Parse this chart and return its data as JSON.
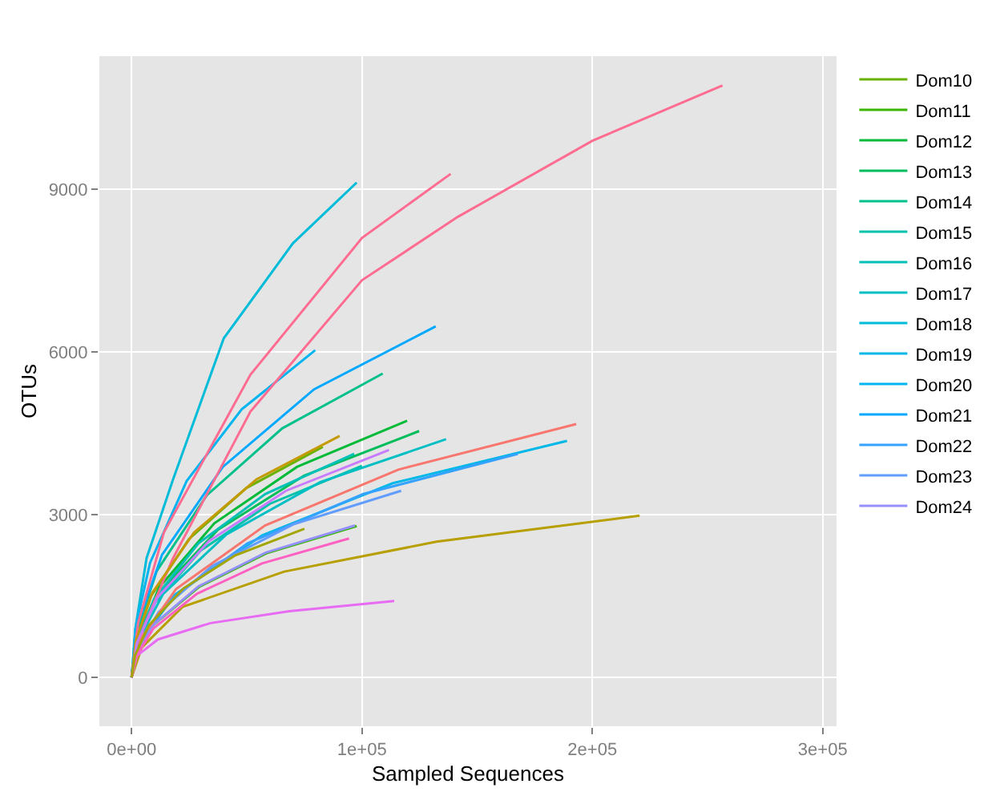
{
  "chart_data": {
    "type": "line",
    "xlabel": "Sampled Sequences",
    "ylabel": "OTUs",
    "xlim": [
      -14000,
      306000
    ],
    "ylim": [
      -900,
      11450
    ],
    "xticks": [
      {
        "value": 0,
        "label": "0e+00"
      },
      {
        "value": 100000,
        "label": "1e+05"
      },
      {
        "value": 200000,
        "label": "2e+05"
      },
      {
        "value": 300000,
        "label": "3e+05"
      }
    ],
    "yticks": [
      0,
      3000,
      6000,
      9000
    ],
    "grid": true,
    "legend": "right",
    "marker": "none",
    "line_style": "solid",
    "series": [
      {
        "name": "Dom10",
        "color": "#6bb100",
        "x": [
          0,
          1700,
          8300,
          24900,
          49800,
          83000
        ],
        "values": [
          0,
          640,
          1490,
          2550,
          3490,
          4250
        ]
      },
      {
        "name": "Dom11",
        "color": "#39b600",
        "x": [
          0,
          2000,
          9800,
          29300,
          58600,
          97700
        ],
        "values": [
          0,
          420,
          980,
          1670,
          2290,
          2790
        ]
      },
      {
        "name": "Dom12",
        "color": "#00ba38",
        "x": [
          0,
          2400,
          12000,
          35900,
          71800,
          119600
        ],
        "values": [
          0,
          710,
          1660,
          2840,
          3880,
          4730
        ]
      },
      {
        "name": "Dom13",
        "color": "#00bd5c",
        "x": [
          0,
          2500,
          12500,
          37400,
          74900,
          124800
        ],
        "values": [
          0,
          680,
          1590,
          2720,
          3720,
          4540
        ]
      },
      {
        "name": "Dom14",
        "color": "#00c08b",
        "x": [
          0,
          2200,
          10900,
          32700,
          65400,
          109000
        ],
        "values": [
          0,
          840,
          1960,
          3360,
          4590,
          5600
        ]
      },
      {
        "name": "Dom15",
        "color": "#00c1a9",
        "x": [
          0,
          2000,
          10000,
          30000,
          60000,
          100000
        ],
        "values": [
          0,
          590,
          1370,
          2340,
          3200,
          3900
        ]
      },
      {
        "name": "Dom16",
        "color": "#00c0b8",
        "x": [
          0,
          1900,
          9700,
          29000,
          58000,
          96600
        ],
        "values": [
          0,
          620,
          1440,
          2470,
          3380,
          4120
        ]
      },
      {
        "name": "Dom17",
        "color": "#00bfc4",
        "x": [
          0,
          2700,
          13700,
          41000,
          81900,
          136500
        ],
        "values": [
          0,
          660,
          1540,
          2630,
          3600,
          4390
        ]
      },
      {
        "name": "Dom18",
        "color": "#00bcd8",
        "x": [
          0,
          2000,
          6500,
          18000,
          40000,
          70000,
          97700
        ],
        "values": [
          0,
          1000,
          2200,
          3650,
          6250,
          8000,
          9120
        ]
      },
      {
        "name": "Dom19",
        "color": "#00b8e7",
        "x": [
          0,
          3800,
          18900,
          56700,
          113400,
          189000
        ],
        "values": [
          0,
          650,
          1530,
          2620,
          3580,
          4360
        ]
      },
      {
        "name": "Dom20",
        "color": "#00b4f0",
        "x": [
          0,
          1600,
          8000,
          23900,
          47800,
          79700
        ],
        "values": [
          0,
          900,
          2110,
          3620,
          4940,
          6030
        ]
      },
      {
        "name": "Dom21",
        "color": "#00a9ff",
        "x": [
          0,
          2600,
          13200,
          39600,
          79200,
          132000
        ],
        "values": [
          0,
          970,
          2260,
          3880,
          5310,
          6470
        ]
      },
      {
        "name": "Dom22",
        "color": "#35a2ff",
        "x": [
          0,
          3400,
          16800,
          50300,
          100600,
          167600
        ],
        "values": [
          0,
          620,
          1440,
          2470,
          3380,
          4120
        ]
      },
      {
        "name": "Dom23",
        "color": "#619cff",
        "x": [
          0,
          2300,
          11700,
          35100,
          70200,
          117000
        ],
        "values": [
          0,
          520,
          1200,
          2060,
          2820,
          3440
        ]
      },
      {
        "name": "Dom24",
        "color": "#9590ff",
        "x": [
          0,
          1900,
          9700,
          29100,
          58200,
          97000
        ],
        "values": [
          0,
          420,
          980,
          1680,
          2300,
          2800
        ]
      },
      {
        "color": "#ff6c91",
        "x": [
          0,
          2800,
          14000,
          51600,
          100000,
          138500
        ],
        "values": [
          0,
          1000,
          2670,
          5580,
          8100,
          9280
        ]
      },
      {
        "color": "#ff6c91",
        "x": [
          0,
          5000,
          17800,
          51600,
          100000,
          141700,
          200000,
          256500
        ],
        "values": [
          0,
          900,
          2180,
          4900,
          7320,
          8490,
          9890,
          10910
        ]
      },
      {
        "color": "#f8766d",
        "x": [
          0,
          3900,
          19300,
          57900,
          115800,
          193000
        ],
        "values": [
          0,
          700,
          1630,
          2800,
          3830,
          4670
        ]
      },
      {
        "color": "#c49a00",
        "x": [
          0,
          1800,
          9000,
          27100,
          54200,
          90300
        ],
        "values": [
          0,
          670,
          1560,
          2670,
          3650,
          4450
        ]
      },
      {
        "color": "#c77cff",
        "x": [
          0,
          2200,
          11200,
          33500,
          67000,
          111700
        ],
        "values": [
          0,
          630,
          1470,
          2510,
          3440,
          4190
        ]
      },
      {
        "color": "#b79f00",
        "x": [
          0,
          4400,
          22100,
          66200,
          132300,
          220500
        ],
        "values": [
          0,
          550,
          1300,
          1950,
          2500,
          2980
        ]
      },
      {
        "color": "#e76bf3",
        "x": [
          0,
          2300,
          11400,
          34200,
          68400,
          114000
        ],
        "values": [
          0,
          400,
          700,
          1000,
          1220,
          1410
        ]
      },
      {
        "color": "#ff61c3",
        "x": [
          0,
          1900,
          9400,
          28300,
          56600,
          94400
        ],
        "values": [
          0,
          380,
          900,
          1540,
          2100,
          2560
        ]
      },
      {
        "color": "#a3a500",
        "x": [
          0,
          1500,
          7500,
          22500,
          45000,
          75000
        ],
        "values": [
          0,
          410,
          960,
          1640,
          2250,
          2740
        ]
      }
    ]
  }
}
